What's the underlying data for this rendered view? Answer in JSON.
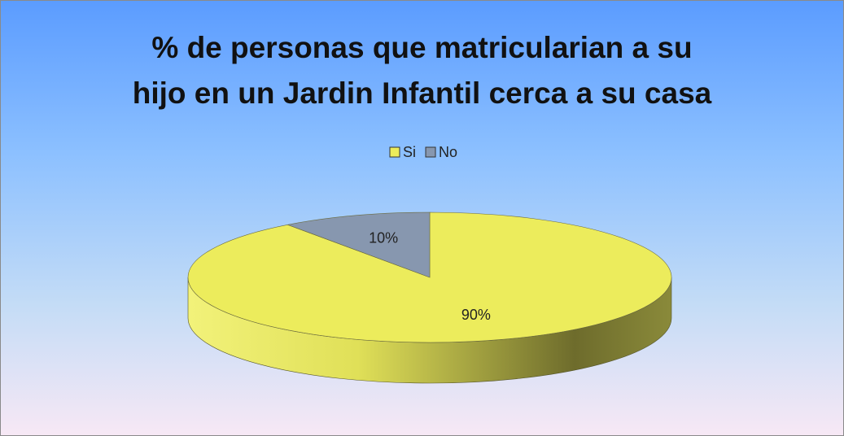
{
  "chart_data": {
    "type": "pie",
    "title": "% de personas que matricularian a su\nhijo en un Jardin Infantil cerca a su casa",
    "categories": [
      "Si",
      "No"
    ],
    "values": [
      90,
      10
    ],
    "value_labels": [
      "90%",
      "10%"
    ],
    "colors": [
      "#ecec5c",
      "#8797af"
    ],
    "legend": "top"
  }
}
